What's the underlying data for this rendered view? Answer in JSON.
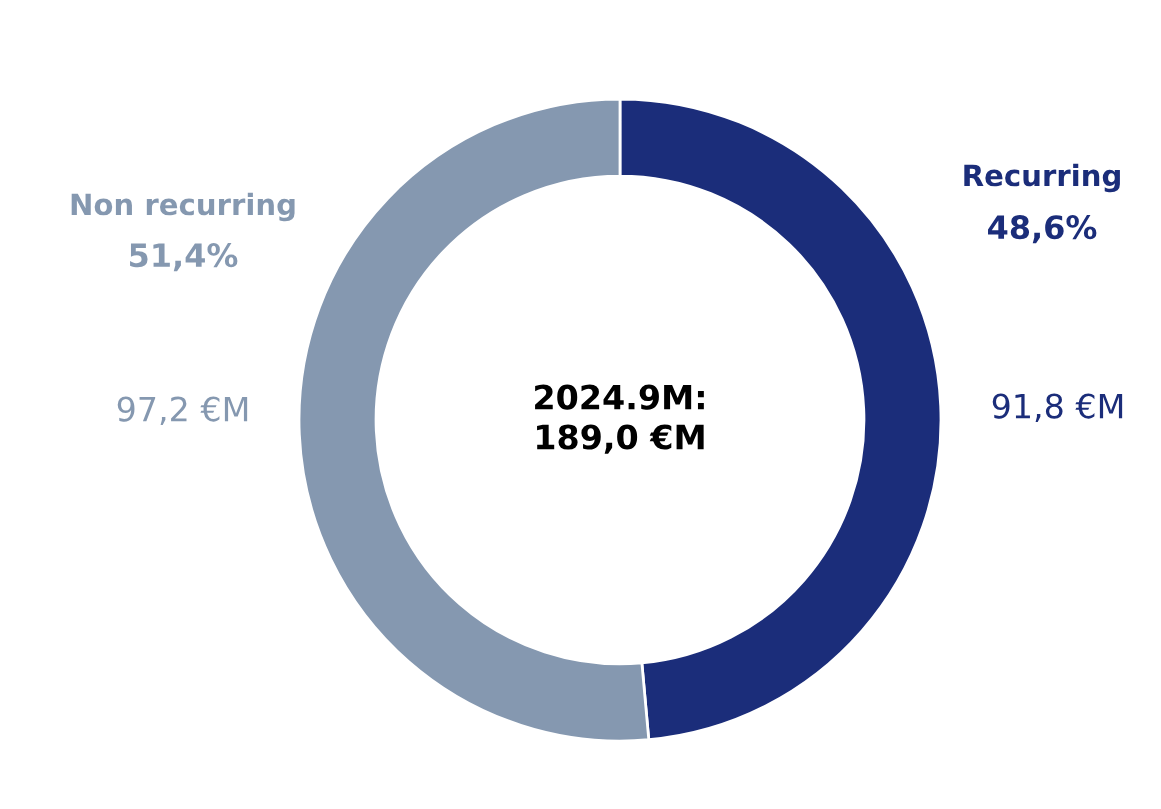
{
  "chart_data": {
    "type": "donut",
    "categories": [
      "Recurring",
      "Non recurring"
    ],
    "values": [
      91.8,
      97.2
    ],
    "colors": [
      "#1b2d7a",
      "#8598b0"
    ],
    "value_labels": [
      "91,8 €M",
      "97,2 €M"
    ],
    "annotations": [
      "48,6%",
      "51,4%",
      "2024.9M:\n189,0 €M"
    ],
    "legend": false
  }
}
